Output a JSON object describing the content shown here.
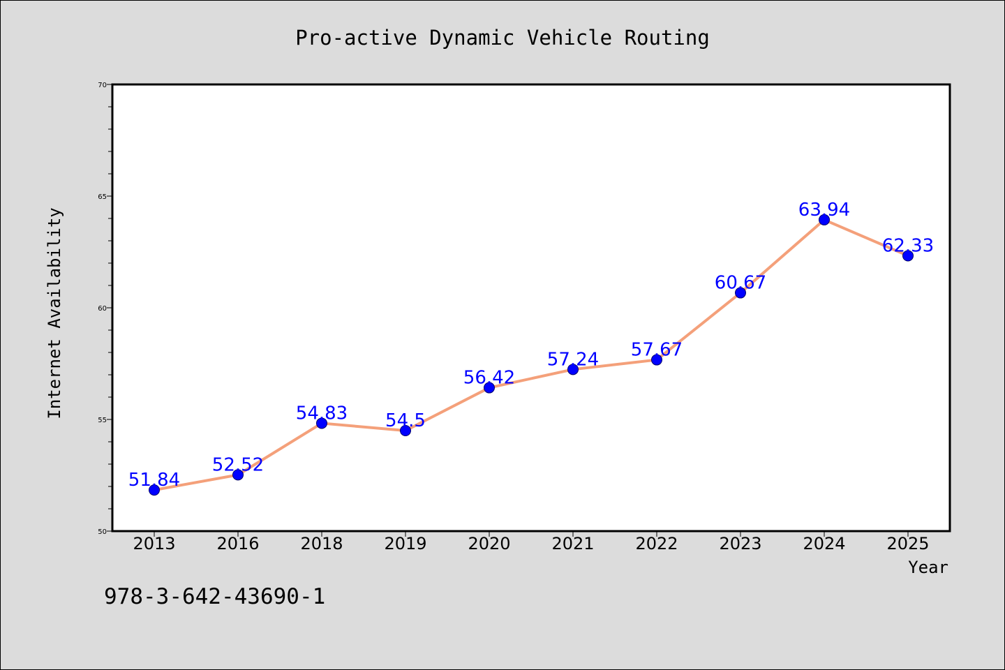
{
  "chart_data": {
    "type": "line",
    "title": "Pro-active Dynamic Vehicle Routing",
    "xlabel": "Year",
    "ylabel": "Internet Availability",
    "categories": [
      "2013",
      "2016",
      "2018",
      "2019",
      "2020",
      "2021",
      "2022",
      "2023",
      "2024",
      "2025"
    ],
    "values": [
      51.84,
      52.52,
      54.83,
      54.5,
      56.42,
      57.24,
      57.67,
      60.67,
      63.94,
      62.33
    ],
    "data_labels": [
      "51.84",
      "52.52",
      "54.83",
      "54.5",
      "56.42",
      "57.24",
      "57.67",
      "60.67",
      "63.94",
      "62.33"
    ],
    "ylim": [
      50,
      70
    ],
    "y_ticks": [
      "50",
      "55",
      "60",
      "65",
      "70"
    ],
    "grid": false,
    "legend": "none",
    "colors": {
      "line": "#f4a07a",
      "marker": "#0000ff",
      "data_label": "#0000ff",
      "background": "#dcdcdc",
      "plot_area": "#ffffff"
    }
  },
  "footer_note": "978-3-642-43690-1"
}
